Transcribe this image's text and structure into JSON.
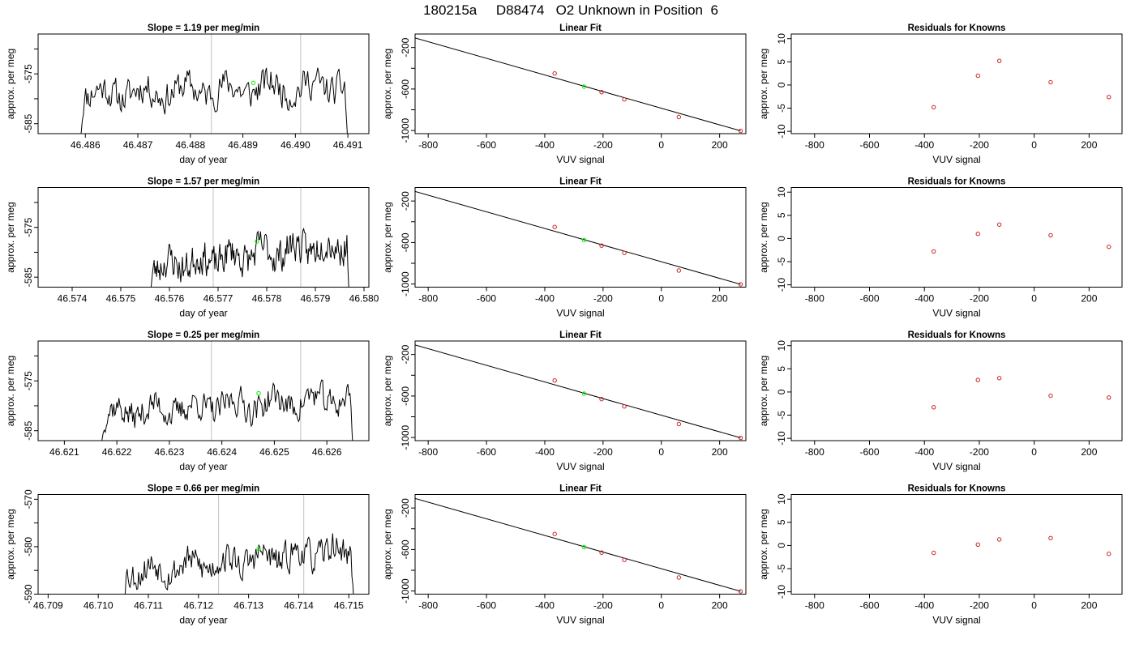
{
  "main_title": "180215a     D88474   O2 Unknown in Position  6",
  "chart_data": [
    {
      "type": "line",
      "panel": "timeseries",
      "title": "Slope =  1.19  per meg/min",
      "xlabel": "day of year",
      "ylabel": "approx. per meg",
      "xlim": [
        46.4851,
        46.4914
      ],
      "ylim": [
        -587,
        -567
      ],
      "xticks": [
        46.486,
        46.487,
        46.488,
        46.489,
        46.49,
        46.491
      ],
      "xtick_labels": [
        "46.486",
        "46.487",
        "46.488",
        "46.489",
        "46.490",
        "46.491"
      ],
      "yticks": [
        -585,
        -575
      ],
      "ytick_labels": [
        "-585",
        "-575"
      ],
      "yminor": [
        -580,
        -570
      ],
      "vlines": [
        46.4884,
        46.4901
      ],
      "vline_color": "#cccccc",
      "trace": {
        "start": 46.4859,
        "end": 46.491,
        "level": -578.2,
        "rise": 1.6,
        "amp": 2.8,
        "seed": 11,
        "edge_low": -589
      },
      "marker": {
        "x": 46.4892,
        "y": -576.8,
        "color": "#00ee00"
      }
    },
    {
      "type": "scatter",
      "panel": "fit",
      "title": "Linear Fit",
      "xlabel": "VUV signal",
      "ylabel": "approx. per meg",
      "xlim": [
        -845,
        290
      ],
      "ylim": [
        -1030,
        -70
      ],
      "xticks": [
        -800,
        -600,
        -400,
        -200,
        0,
        200
      ],
      "xtick_labels": [
        "-800",
        "-600",
        "-400",
        "-200",
        "0",
        "200"
      ],
      "yticks": [
        -200,
        -600,
        -1000
      ],
      "ytick_labels": [
        "-200",
        "-600",
        "-1000"
      ],
      "yminor": [
        -400,
        -800
      ],
      "line": {
        "x": [
          -845,
          272
        ],
        "y": [
          -108,
          -1003
        ]
      },
      "points": {
        "x": [
          -366,
          -205,
          -127,
          60,
          272
        ],
        "y": [
          -450,
          -630,
          -700,
          -870,
          -1003
        ],
        "color": "#cc2222"
      },
      "unknown": {
        "x": -265,
        "y": -577,
        "color": "#00ee00"
      }
    },
    {
      "type": "scatter",
      "panel": "residuals",
      "title": "Residuals for Knowns",
      "xlabel": "VUV signal",
      "ylabel": "approx. per meg",
      "xlim": [
        -885,
        320
      ],
      "ylim": [
        -10.5,
        11
      ],
      "xticks": [
        -800,
        -600,
        -400,
        -200,
        0,
        200
      ],
      "xtick_labels": [
        "-800",
        "-600",
        "-400",
        "-200",
        "0",
        "200"
      ],
      "yticks": [
        10,
        5,
        0,
        -5,
        -10
      ],
      "ytick_labels": [
        "10",
        "5",
        "0",
        "-5",
        "-10"
      ],
      "points": {
        "x": [
          -366,
          -205,
          -127,
          60,
          272
        ],
        "y": [
          -4.8,
          2.0,
          5.2,
          0.6,
          -2.6
        ],
        "color": "#cc2222"
      }
    },
    {
      "type": "line",
      "panel": "timeseries",
      "title": "Slope =  1.57  per meg/min",
      "xlabel": "day of year",
      "ylabel": "approx. per meg",
      "xlim": [
        46.5733,
        46.5801
      ],
      "ylim": [
        -587,
        -567
      ],
      "xticks": [
        46.574,
        46.575,
        46.576,
        46.577,
        46.578,
        46.579,
        46.58
      ],
      "xtick_labels": [
        "46.574",
        "46.575",
        "46.576",
        "46.577",
        "46.578",
        "46.579",
        "46.580"
      ],
      "yticks": [
        -585,
        -575
      ],
      "ytick_labels": [
        "-585",
        "-575"
      ],
      "yminor": [
        -580,
        -570
      ],
      "vlines": [
        46.5769,
        46.5787
      ],
      "vline_color": "#cccccc",
      "trace": {
        "start": 46.5756,
        "end": 46.5797,
        "level": -580.5,
        "rise": 5.0,
        "amp": 3.0,
        "seed": 23,
        "edge_low": -589
      },
      "marker": {
        "x": 46.5778,
        "y": -577.8,
        "color": "#00ee00"
      }
    },
    {
      "type": "scatter",
      "panel": "fit",
      "title": "Linear Fit",
      "xlabel": "VUV signal",
      "ylabel": "approx. per meg",
      "xlim": [
        -845,
        290
      ],
      "ylim": [
        -1030,
        -70
      ],
      "xticks": [
        -800,
        -600,
        -400,
        -200,
        0,
        200
      ],
      "xtick_labels": [
        "-800",
        "-600",
        "-400",
        "-200",
        "0",
        "200"
      ],
      "yticks": [
        -200,
        -600,
        -1000
      ],
      "ytick_labels": [
        "-200",
        "-600",
        "-1000"
      ],
      "yminor": [
        -400,
        -800
      ],
      "line": {
        "x": [
          -845,
          272
        ],
        "y": [
          -108,
          -1003
        ]
      },
      "points": {
        "x": [
          -366,
          -205,
          -127,
          60,
          272
        ],
        "y": [
          -450,
          -630,
          -700,
          -870,
          -1003
        ],
        "color": "#cc2222"
      },
      "unknown": {
        "x": -265,
        "y": -577,
        "color": "#00ee00"
      }
    },
    {
      "type": "scatter",
      "panel": "residuals",
      "title": "Residuals for Knowns",
      "xlabel": "VUV signal",
      "ylabel": "approx. per meg",
      "xlim": [
        -885,
        320
      ],
      "ylim": [
        -10.5,
        11
      ],
      "xticks": [
        -800,
        -600,
        -400,
        -200,
        0,
        200
      ],
      "xtick_labels": [
        "-800",
        "-600",
        "-400",
        "-200",
        "0",
        "200"
      ],
      "yticks": [
        10,
        5,
        0,
        -5,
        -10
      ],
      "ytick_labels": [
        "10",
        "5",
        "0",
        "-5",
        "-10"
      ],
      "points": {
        "x": [
          -366,
          -205,
          -127,
          60,
          272
        ],
        "y": [
          -2.8,
          1.0,
          3.0,
          0.7,
          -1.8
        ],
        "color": "#cc2222"
      }
    },
    {
      "type": "line",
      "panel": "timeseries",
      "title": "Slope =  0.25  per meg/min",
      "xlabel": "day of year",
      "ylabel": "approx. per meg",
      "xlim": [
        46.6205,
        46.6268
      ],
      "ylim": [
        -587,
        -567
      ],
      "xticks": [
        46.621,
        46.622,
        46.623,
        46.624,
        46.625,
        46.626
      ],
      "xtick_labels": [
        "46.621",
        "46.622",
        "46.623",
        "46.624",
        "46.625",
        "46.626"
      ],
      "yticks": [
        -585,
        -575
      ],
      "ytick_labels": [
        "-585",
        "-575"
      ],
      "yminor": [
        -580,
        -570
      ],
      "vlines": [
        46.6238,
        46.6255
      ],
      "vline_color": "#cccccc",
      "trace": {
        "start": 46.6217,
        "end": 46.6265,
        "level": -580.0,
        "rise": 3.0,
        "amp": 2.6,
        "seed": 37,
        "edge_low": -589
      },
      "marker": {
        "x": 46.6247,
        "y": -577.5,
        "color": "#00ee00"
      }
    },
    {
      "type": "scatter",
      "panel": "fit",
      "title": "Linear Fit",
      "xlabel": "VUV signal",
      "ylabel": "approx. per meg",
      "xlim": [
        -845,
        290
      ],
      "ylim": [
        -1030,
        -70
      ],
      "xticks": [
        -800,
        -600,
        -400,
        -200,
        0,
        200
      ],
      "xtick_labels": [
        "-800",
        "-600",
        "-400",
        "-200",
        "0",
        "200"
      ],
      "yticks": [
        -200,
        -600,
        -1000
      ],
      "ytick_labels": [
        "-200",
        "-600",
        "-1000"
      ],
      "yminor": [
        -400,
        -800
      ],
      "line": {
        "x": [
          -845,
          272
        ],
        "y": [
          -108,
          -1003
        ]
      },
      "points": {
        "x": [
          -366,
          -205,
          -127,
          60,
          272
        ],
        "y": [
          -450,
          -630,
          -700,
          -870,
          -1003
        ],
        "color": "#cc2222"
      },
      "unknown": {
        "x": -265,
        "y": -577,
        "color": "#00ee00"
      }
    },
    {
      "type": "scatter",
      "panel": "residuals",
      "title": "Residuals for Knowns",
      "xlabel": "VUV signal",
      "ylabel": "approx. per meg",
      "xlim": [
        -885,
        320
      ],
      "ylim": [
        -10.5,
        11
      ],
      "xticks": [
        -800,
        -600,
        -400,
        -200,
        0,
        200
      ],
      "xtick_labels": [
        "-800",
        "-600",
        "-400",
        "-200",
        "0",
        "200"
      ],
      "yticks": [
        10,
        5,
        0,
        -5,
        -10
      ],
      "ytick_labels": [
        "10",
        "5",
        "0",
        "-5",
        "-10"
      ],
      "points": {
        "x": [
          -366,
          -205,
          -127,
          60,
          272
        ],
        "y": [
          -3.3,
          2.6,
          3.0,
          -0.8,
          -1.2
        ],
        "color": "#cc2222"
      }
    },
    {
      "type": "line",
      "panel": "timeseries",
      "title": "Slope =  0.66  per meg/min",
      "xlabel": "day of year",
      "ylabel": "approx. per meg",
      "xlim": [
        46.7088,
        46.7154
      ],
      "ylim": [
        -590,
        -569
      ],
      "xticks": [
        46.709,
        46.71,
        46.711,
        46.712,
        46.713,
        46.714,
        46.715
      ],
      "xtick_labels": [
        "46.709",
        "46.710",
        "46.711",
        "46.712",
        "46.713",
        "46.714",
        "46.715"
      ],
      "yticks": [
        -590,
        -580,
        -570
      ],
      "ytick_labels": [
        "-590",
        "-580",
        "-570"
      ],
      "yminor": [
        -585,
        -575
      ],
      "vlines": [
        46.7124,
        46.7141
      ],
      "vline_color": "#cccccc",
      "trace": {
        "start": 46.7105,
        "end": 46.7151,
        "level": -583.0,
        "rise": 4.5,
        "amp": 2.8,
        "seed": 53,
        "edge_low": -592
      },
      "marker": {
        "x": 46.7132,
        "y": -580.5,
        "color": "#00ee00"
      }
    },
    {
      "type": "scatter",
      "panel": "fit",
      "title": "Linear Fit",
      "xlabel": "VUV signal",
      "ylabel": "approx. per meg",
      "xlim": [
        -845,
        290
      ],
      "ylim": [
        -1030,
        -70
      ],
      "xticks": [
        -800,
        -600,
        -400,
        -200,
        0,
        200
      ],
      "xtick_labels": [
        "-800",
        "-600",
        "-400",
        "-200",
        "0",
        "200"
      ],
      "yticks": [
        -200,
        -600,
        -1000
      ],
      "ytick_labels": [
        "-200",
        "-600",
        "-1000"
      ],
      "yminor": [
        -400,
        -800
      ],
      "line": {
        "x": [
          -845,
          272
        ],
        "y": [
          -108,
          -1003
        ]
      },
      "points": {
        "x": [
          -366,
          -205,
          -127,
          60,
          272
        ],
        "y": [
          -450,
          -630,
          -700,
          -870,
          -1003
        ],
        "color": "#cc2222"
      },
      "unknown": {
        "x": -265,
        "y": -577,
        "color": "#00ee00"
      }
    },
    {
      "type": "scatter",
      "panel": "residuals",
      "title": "Residuals for Knowns",
      "xlabel": "VUV signal",
      "ylabel": "approx. per meg",
      "xlim": [
        -885,
        320
      ],
      "ylim": [
        -10.5,
        11
      ],
      "xticks": [
        -800,
        -600,
        -400,
        -200,
        0,
        200
      ],
      "xtick_labels": [
        "-800",
        "-600",
        "-400",
        "-200",
        "0",
        "200"
      ],
      "yticks": [
        10,
        5,
        0,
        -5,
        -10
      ],
      "ytick_labels": [
        "10",
        "5",
        "0",
        "-5",
        "-10"
      ],
      "points": {
        "x": [
          -366,
          -205,
          -127,
          60,
          272
        ],
        "y": [
          -1.6,
          0.2,
          1.3,
          1.6,
          -1.8
        ],
        "color": "#cc2222"
      }
    }
  ]
}
